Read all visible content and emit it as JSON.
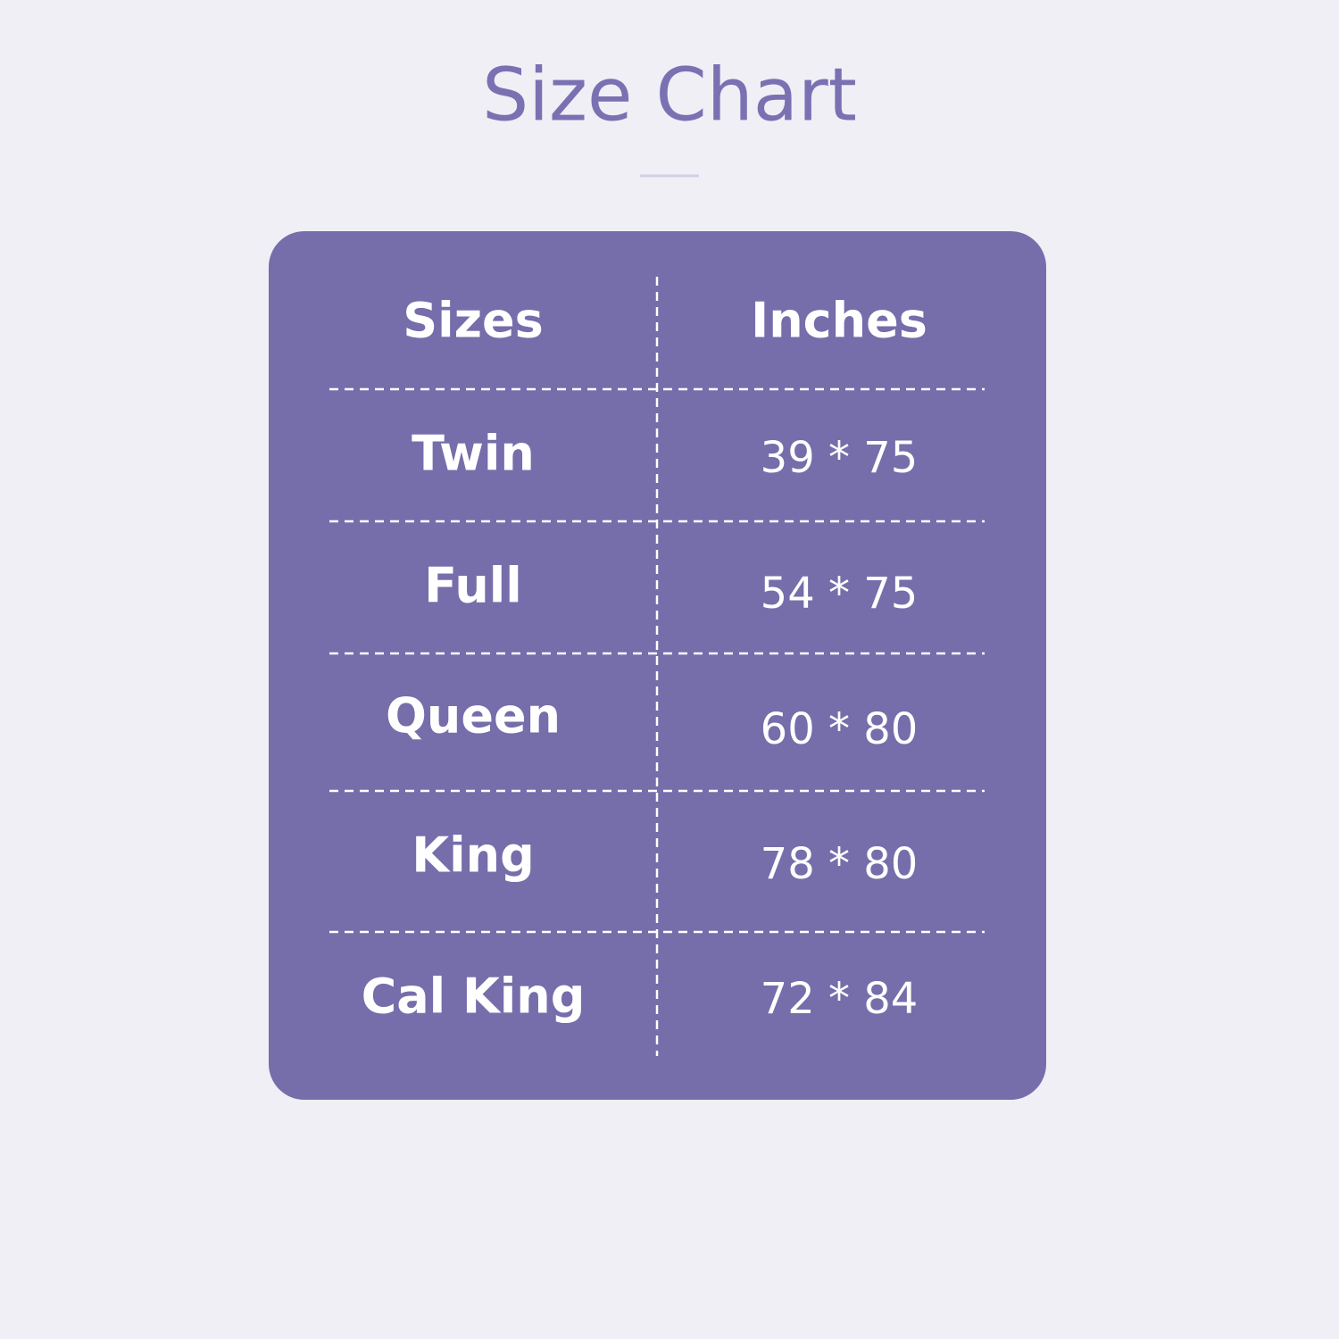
{
  "title": "Size Chart",
  "table": {
    "header": [
      "Sizes",
      "Inches"
    ],
    "rows": [
      [
        "Twin",
        "39 * 75"
      ],
      [
        "Full",
        "54 * 75"
      ],
      [
        "Queen",
        "60 * 80"
      ],
      [
        "King",
        "78 * 80"
      ],
      [
        "Cal King",
        "72 * 84"
      ]
    ]
  }
}
